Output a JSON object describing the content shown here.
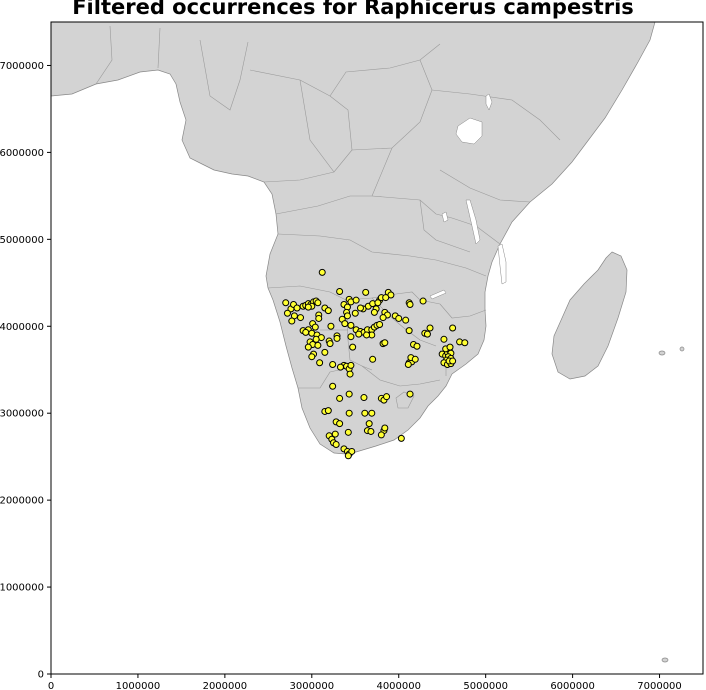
{
  "chart_data": {
    "type": "scatter",
    "title": "Filtered occurrences for Raphicerus campestris",
    "xlabel": "",
    "ylabel": "",
    "xlim": [
      0,
      7500000
    ],
    "ylim": [
      0,
      7500000
    ],
    "x_ticks": [
      0,
      1000000,
      2000000,
      3000000,
      4000000,
      5000000,
      6000000,
      7000000
    ],
    "x_tick_labels": [
      "0",
      "1000000",
      "2000000",
      "3000000",
      "4000000",
      "5000000",
      "6000000",
      "7000000"
    ],
    "y_ticks": [
      0,
      1000000,
      2000000,
      3000000,
      4000000,
      5000000,
      6000000,
      7000000
    ],
    "y_tick_labels": [
      "0",
      "1000000",
      "2000000",
      "3000000",
      "4000000",
      "5000000",
      "6000000",
      "7000000"
    ],
    "grid": false,
    "background": "map of Africa (land in light grey, country borders)",
    "series": [
      {
        "name": "occurrences",
        "color": "#ffff33",
        "edgecolor": "#000000",
        "points": [
          [
            3120000,
            4620000
          ],
          [
            2700000,
            4270000
          ],
          [
            2760000,
            4200000
          ],
          [
            2790000,
            4250000
          ],
          [
            2830000,
            4210000
          ],
          [
            2720000,
            4150000
          ],
          [
            2800000,
            4120000
          ],
          [
            2870000,
            4100000
          ],
          [
            2770000,
            4060000
          ],
          [
            2900000,
            4230000
          ],
          [
            2930000,
            4240000
          ],
          [
            2960000,
            4260000
          ],
          [
            2990000,
            4250000
          ],
          [
            3020000,
            4280000
          ],
          [
            3050000,
            4290000
          ],
          [
            3070000,
            4270000
          ],
          [
            3000000,
            4230000
          ],
          [
            2960000,
            4220000
          ],
          [
            3080000,
            4130000
          ],
          [
            3080000,
            4090000
          ],
          [
            3150000,
            4210000
          ],
          [
            3190000,
            4180000
          ],
          [
            3010000,
            4030000
          ],
          [
            3040000,
            3990000
          ],
          [
            2960000,
            3960000
          ],
          [
            2900000,
            3950000
          ],
          [
            2930000,
            3930000
          ],
          [
            3000000,
            3920000
          ],
          [
            3060000,
            3900000
          ],
          [
            3110000,
            3870000
          ],
          [
            3050000,
            3850000
          ],
          [
            2980000,
            3820000
          ],
          [
            3010000,
            3790000
          ],
          [
            3070000,
            3780000
          ],
          [
            2960000,
            3760000
          ],
          [
            3200000,
            3830000
          ],
          [
            3210000,
            3800000
          ],
          [
            3290000,
            3890000
          ],
          [
            3290000,
            3860000
          ],
          [
            3220000,
            4000000
          ],
          [
            3150000,
            3700000
          ],
          [
            3020000,
            3680000
          ],
          [
            3000000,
            3650000
          ],
          [
            3090000,
            3580000
          ],
          [
            3240000,
            3560000
          ],
          [
            3320000,
            4400000
          ],
          [
            3430000,
            4310000
          ],
          [
            3370000,
            4250000
          ],
          [
            3410000,
            4220000
          ],
          [
            3450000,
            4280000
          ],
          [
            3510000,
            4300000
          ],
          [
            3620000,
            4390000
          ],
          [
            3650000,
            4230000
          ],
          [
            3700000,
            4260000
          ],
          [
            3740000,
            4200000
          ],
          [
            3780000,
            4300000
          ],
          [
            3800000,
            4330000
          ],
          [
            3760000,
            4270000
          ],
          [
            3880000,
            4390000
          ],
          [
            3910000,
            4360000
          ],
          [
            3850000,
            4330000
          ],
          [
            3400000,
            4160000
          ],
          [
            3410000,
            4120000
          ],
          [
            3500000,
            4150000
          ],
          [
            3590000,
            4200000
          ],
          [
            3560000,
            4210000
          ],
          [
            3720000,
            4160000
          ],
          [
            3840000,
            4160000
          ],
          [
            3870000,
            4130000
          ],
          [
            3820000,
            4100000
          ],
          [
            3960000,
            4120000
          ],
          [
            4000000,
            4090000
          ],
          [
            3350000,
            4080000
          ],
          [
            3380000,
            4030000
          ],
          [
            3450000,
            4010000
          ],
          [
            3510000,
            3960000
          ],
          [
            3560000,
            3940000
          ],
          [
            3600000,
            3930000
          ],
          [
            3540000,
            3910000
          ],
          [
            3640000,
            3960000
          ],
          [
            3690000,
            3960000
          ],
          [
            3720000,
            3990000
          ],
          [
            3750000,
            4010000
          ],
          [
            3780000,
            4020000
          ],
          [
            3690000,
            3900000
          ],
          [
            3630000,
            3900000
          ],
          [
            3450000,
            3880000
          ],
          [
            3470000,
            3760000
          ],
          [
            3820000,
            3800000
          ],
          [
            3840000,
            3810000
          ],
          [
            3700000,
            3620000
          ],
          [
            3370000,
            3550000
          ],
          [
            3400000,
            3540000
          ],
          [
            3330000,
            3530000
          ],
          [
            3430000,
            3510000
          ],
          [
            3450000,
            3550000
          ],
          [
            3440000,
            3450000
          ],
          [
            4120000,
            4270000
          ],
          [
            4130000,
            4250000
          ],
          [
            4280000,
            4290000
          ],
          [
            4080000,
            4070000
          ],
          [
            4300000,
            3920000
          ],
          [
            4330000,
            3910000
          ],
          [
            4360000,
            3980000
          ],
          [
            4120000,
            3950000
          ],
          [
            4120000,
            3580000
          ],
          [
            4150000,
            3590000
          ],
          [
            4140000,
            3640000
          ],
          [
            4190000,
            3620000
          ],
          [
            4170000,
            3790000
          ],
          [
            4210000,
            3770000
          ],
          [
            4110000,
            3560000
          ],
          [
            4130000,
            3220000
          ],
          [
            4620000,
            3980000
          ],
          [
            4700000,
            3820000
          ],
          [
            4760000,
            3810000
          ],
          [
            4520000,
            3850000
          ],
          [
            4500000,
            3680000
          ],
          [
            4540000,
            3660000
          ],
          [
            4560000,
            3700000
          ],
          [
            4580000,
            3730000
          ],
          [
            4600000,
            3690000
          ],
          [
            4570000,
            3650000
          ],
          [
            4600000,
            3630000
          ],
          [
            4550000,
            3610000
          ],
          [
            4520000,
            3580000
          ],
          [
            4560000,
            3560000
          ],
          [
            4600000,
            3570000
          ],
          [
            4580000,
            3600000
          ],
          [
            4620000,
            3600000
          ],
          [
            4540000,
            3740000
          ],
          [
            4590000,
            3760000
          ],
          [
            3320000,
            3170000
          ],
          [
            3240000,
            3310000
          ],
          [
            3430000,
            3220000
          ],
          [
            3600000,
            3180000
          ],
          [
            3800000,
            3170000
          ],
          [
            3830000,
            3150000
          ],
          [
            3860000,
            3190000
          ],
          [
            3610000,
            3000000
          ],
          [
            3150000,
            3020000
          ],
          [
            3190000,
            3030000
          ],
          [
            3430000,
            3000000
          ],
          [
            3690000,
            3000000
          ],
          [
            3660000,
            2880000
          ],
          [
            3640000,
            2800000
          ],
          [
            3680000,
            2790000
          ],
          [
            3830000,
            2800000
          ],
          [
            3840000,
            2830000
          ],
          [
            3800000,
            2750000
          ],
          [
            4030000,
            2710000
          ],
          [
            3280000,
            2900000
          ],
          [
            3320000,
            2880000
          ],
          [
            3420000,
            2780000
          ],
          [
            3200000,
            2740000
          ],
          [
            3230000,
            2700000
          ],
          [
            3250000,
            2660000
          ],
          [
            3280000,
            2640000
          ],
          [
            3270000,
            2760000
          ],
          [
            3370000,
            2590000
          ],
          [
            3410000,
            2560000
          ],
          [
            3430000,
            2530000
          ],
          [
            3460000,
            2560000
          ],
          [
            3420000,
            2510000
          ]
        ]
      }
    ]
  }
}
